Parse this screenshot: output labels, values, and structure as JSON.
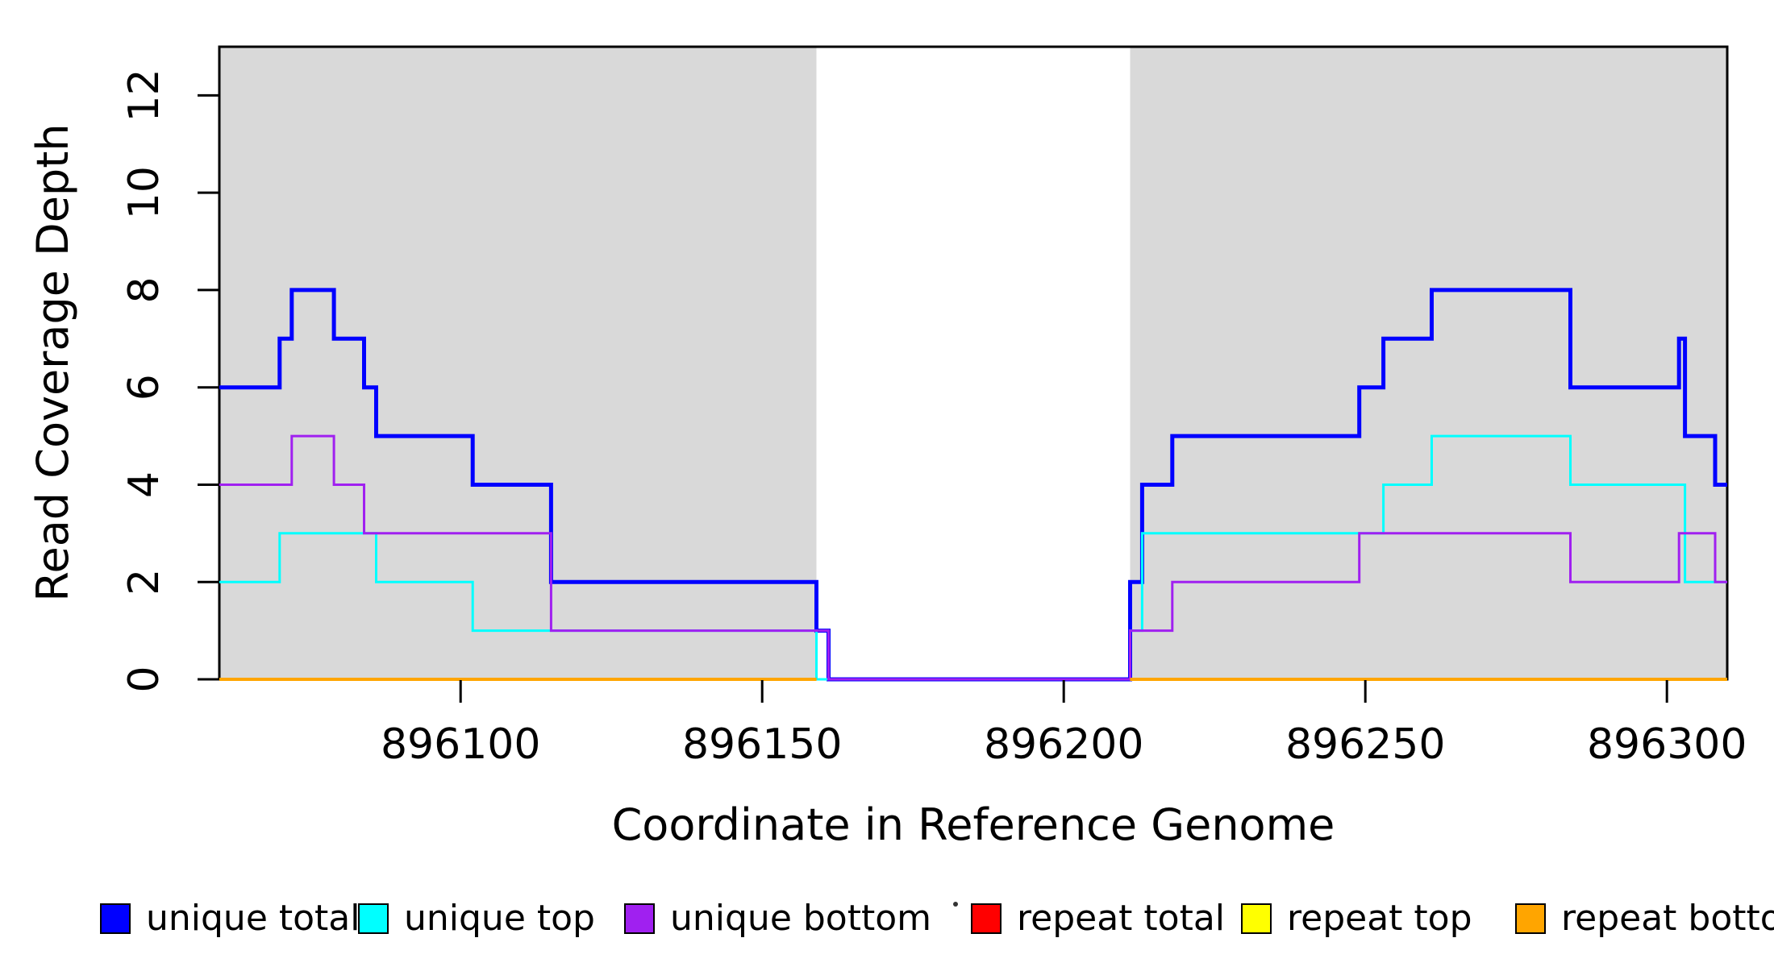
{
  "chart_data": {
    "type": "line",
    "subtype": "step-coverage-plot",
    "title": "",
    "xlabel": "Coordinate in Reference Genome",
    "ylabel": "Read Coverage Depth",
    "xlim": [
      896060,
      896310
    ],
    "ylim": [
      0,
      13
    ],
    "grid": false,
    "background_color": "#ffffff",
    "shade_color": "#d9d9d9",
    "axis_color": "#000000",
    "x_axis": {
      "ticks": [
        {
          "value": 896100,
          "label": "896100"
        },
        {
          "value": 896150,
          "label": "896150"
        },
        {
          "value": 896200,
          "label": "896200"
        },
        {
          "value": 896250,
          "label": "896250"
        },
        {
          "value": 896300,
          "label": "896300"
        }
      ]
    },
    "y_axis": {
      "ticks": [
        {
          "value": 0,
          "label": "0"
        },
        {
          "value": 2,
          "label": "2"
        },
        {
          "value": 4,
          "label": "4"
        },
        {
          "value": 6,
          "label": "6"
        },
        {
          "value": 8,
          "label": "8"
        },
        {
          "value": 10,
          "label": "10"
        },
        {
          "value": 12,
          "label": "12"
        }
      ]
    },
    "shaded_regions": [
      {
        "x0": 896060,
        "x1": 896159
      },
      {
        "x0": 896211,
        "x1": 896310
      }
    ],
    "series": [
      {
        "name": "unique total",
        "color": "#0000ff",
        "line_width": 5,
        "steps": [
          [
            896060,
            6
          ],
          [
            896070,
            7
          ],
          [
            896072,
            8
          ],
          [
            896079,
            7
          ],
          [
            896084,
            6
          ],
          [
            896086,
            5
          ],
          [
            896102,
            4
          ],
          [
            896115,
            2
          ],
          [
            896159,
            1
          ],
          [
            896161,
            0
          ],
          [
            896211,
            2
          ],
          [
            896213,
            4
          ],
          [
            896218,
            5
          ],
          [
            896249,
            6
          ],
          [
            896253,
            7
          ],
          [
            896261,
            8
          ],
          [
            896284,
            6
          ],
          [
            896302,
            7
          ],
          [
            896303,
            5
          ],
          [
            896308,
            4
          ]
        ],
        "x_end": 896310
      },
      {
        "name": "unique top",
        "color": "#00ffff",
        "line_width": 3,
        "steps": [
          [
            896060,
            2
          ],
          [
            896070,
            3
          ],
          [
            896086,
            2
          ],
          [
            896102,
            1
          ],
          [
            896159,
            0
          ],
          [
            896211,
            1
          ],
          [
            896213,
            3
          ],
          [
            896253,
            4
          ],
          [
            896261,
            5
          ],
          [
            896284,
            4
          ],
          [
            896303,
            2
          ]
        ],
        "x_end": 896310
      },
      {
        "name": "unique bottom",
        "color": "#a020f0",
        "line_width": 3,
        "steps": [
          [
            896060,
            4
          ],
          [
            896072,
            5
          ],
          [
            896079,
            4
          ],
          [
            896084,
            3
          ],
          [
            896115,
            1
          ],
          [
            896161,
            0
          ],
          [
            896211,
            1
          ],
          [
            896218,
            2
          ],
          [
            896249,
            3
          ],
          [
            896284,
            2
          ],
          [
            896302,
            3
          ],
          [
            896308,
            2
          ]
        ],
        "x_end": 896310
      },
      {
        "name": "repeat total",
        "color": "#ff0000",
        "line_width": 3,
        "steps": [],
        "x_end": 896310,
        "flat_zero_segments": [
          [
            896060,
            896159
          ],
          [
            896211,
            896310
          ]
        ]
      },
      {
        "name": "repeat top",
        "color": "#ffff00",
        "line_width": 3,
        "steps": [],
        "x_end": 896310,
        "flat_zero_segments": [
          [
            896060,
            896159
          ],
          [
            896211,
            896310
          ]
        ]
      },
      {
        "name": "repeat bottom",
        "color": "#ffa500",
        "line_width": 4,
        "steps": [],
        "x_end": 896310,
        "flat_zero_segments": [
          [
            896060,
            896159
          ],
          [
            896211,
            896310
          ]
        ]
      }
    ],
    "legend": {
      "position": "bottom",
      "items": [
        {
          "label": "unique total",
          "color": "#0000ff"
        },
        {
          "label": "unique top",
          "color": "#00ffff"
        },
        {
          "label": "unique bottom",
          "color": "#a020f0"
        },
        {
          "label": "repeat total",
          "color": "#ff0000"
        },
        {
          "label": "repeat top",
          "color": "#ffff00"
        },
        {
          "label": "repeat bottom",
          "color": "#ffa500"
        }
      ]
    }
  }
}
